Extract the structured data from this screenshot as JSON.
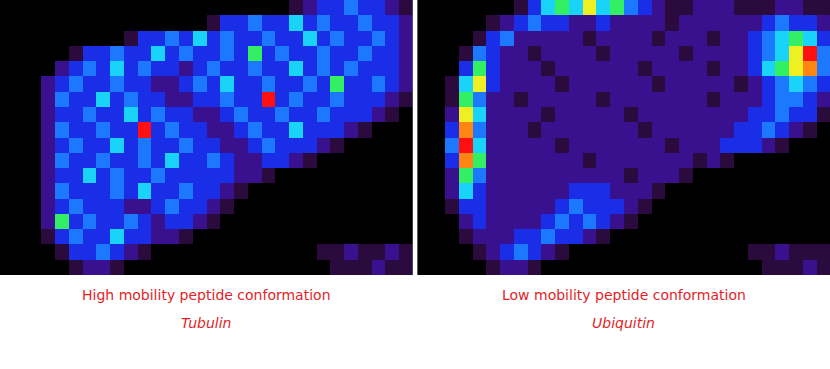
{
  "chart_data": [
    {
      "type": "heatmap",
      "title": "High mobility peptide conformation",
      "subtitle": "Tubulin",
      "zlim": [
        0,
        9
      ],
      "tick_labels": false,
      "z": [
        [
          0,
          0,
          0,
          0,
          0,
          0,
          0,
          0,
          0,
          0,
          0,
          0,
          0,
          0,
          0,
          0,
          0,
          0,
          0,
          0,
          0,
          1,
          2,
          3,
          3,
          4,
          3,
          3,
          2,
          1
        ],
        [
          0,
          0,
          0,
          0,
          0,
          0,
          0,
          0,
          0,
          0,
          0,
          0,
          0,
          0,
          0,
          1,
          3,
          3,
          4,
          3,
          3,
          5,
          3,
          4,
          3,
          3,
          4,
          3,
          3,
          2
        ],
        [
          0,
          0,
          0,
          0,
          0,
          0,
          0,
          0,
          0,
          1,
          3,
          3,
          4,
          3,
          5,
          3,
          4,
          3,
          3,
          4,
          3,
          3,
          5,
          3,
          4,
          3,
          3,
          4,
          3,
          2
        ],
        [
          0,
          0,
          0,
          0,
          0,
          1,
          3,
          3,
          4,
          3,
          3,
          5,
          3,
          4,
          3,
          3,
          4,
          3,
          6,
          3,
          4,
          3,
          3,
          4,
          3,
          3,
          4,
          3,
          3,
          2
        ],
        [
          0,
          0,
          0,
          0,
          2,
          3,
          4,
          3,
          5,
          3,
          4,
          3,
          3,
          2,
          3,
          4,
          3,
          3,
          4,
          3,
          3,
          5,
          3,
          4,
          3,
          4,
          3,
          3,
          3,
          2
        ],
        [
          0,
          0,
          0,
          2,
          3,
          4,
          3,
          3,
          4,
          3,
          3,
          2,
          2,
          3,
          4,
          3,
          5,
          3,
          3,
          4,
          3,
          3,
          4,
          3,
          6,
          3,
          3,
          4,
          3,
          2
        ],
        [
          0,
          0,
          0,
          2,
          4,
          3,
          3,
          5,
          3,
          4,
          3,
          3,
          2,
          2,
          3,
          3,
          4,
          3,
          3,
          9,
          3,
          4,
          3,
          3,
          4,
          3,
          3,
          3,
          2,
          1
        ],
        [
          0,
          0,
          0,
          2,
          3,
          3,
          4,
          3,
          3,
          5,
          3,
          4,
          3,
          3,
          2,
          2,
          3,
          4,
          3,
          3,
          4,
          3,
          3,
          4,
          3,
          3,
          3,
          2,
          1,
          0
        ],
        [
          0,
          0,
          0,
          2,
          4,
          3,
          3,
          4,
          3,
          3,
          9,
          3,
          4,
          3,
          3,
          2,
          2,
          3,
          4,
          3,
          3,
          5,
          3,
          3,
          3,
          2,
          1,
          0,
          0,
          0
        ],
        [
          0,
          0,
          0,
          2,
          3,
          4,
          3,
          3,
          5,
          3,
          4,
          3,
          3,
          4,
          3,
          3,
          2,
          2,
          3,
          4,
          3,
          3,
          3,
          2,
          1,
          0,
          0,
          0,
          0,
          0
        ],
        [
          0,
          0,
          0,
          2,
          4,
          3,
          3,
          4,
          3,
          3,
          4,
          3,
          5,
          3,
          3,
          4,
          3,
          2,
          2,
          3,
          3,
          2,
          1,
          0,
          0,
          0,
          0,
          0,
          0,
          0
        ],
        [
          0,
          0,
          0,
          2,
          3,
          3,
          5,
          3,
          4,
          3,
          3,
          4,
          3,
          3,
          3,
          3,
          3,
          2,
          2,
          1,
          0,
          0,
          0,
          0,
          0,
          0,
          0,
          0,
          0,
          0
        ],
        [
          0,
          0,
          0,
          2,
          4,
          3,
          3,
          3,
          4,
          3,
          5,
          3,
          3,
          4,
          3,
          3,
          2,
          1,
          0,
          0,
          0,
          0,
          0,
          0,
          0,
          0,
          0,
          0,
          0,
          0
        ],
        [
          0,
          0,
          0,
          2,
          3,
          4,
          3,
          3,
          3,
          2,
          2,
          3,
          4,
          3,
          3,
          2,
          1,
          0,
          0,
          0,
          0,
          0,
          0,
          0,
          0,
          0,
          0,
          0,
          0,
          0
        ],
        [
          0,
          0,
          0,
          2,
          6,
          3,
          4,
          3,
          3,
          4,
          3,
          2,
          3,
          3,
          2,
          1,
          0,
          0,
          0,
          0,
          0,
          0,
          0,
          0,
          0,
          0,
          0,
          0,
          0,
          0
        ],
        [
          0,
          0,
          0,
          1,
          3,
          4,
          3,
          3,
          5,
          3,
          3,
          2,
          2,
          1,
          0,
          0,
          0,
          0,
          0,
          0,
          0,
          0,
          0,
          0,
          0,
          0,
          0,
          0,
          0,
          0
        ],
        [
          0,
          0,
          0,
          0,
          1,
          3,
          3,
          4,
          3,
          2,
          1,
          0,
          0,
          0,
          0,
          0,
          0,
          0,
          0,
          0,
          0,
          0,
          0,
          1,
          1,
          2,
          1,
          1,
          2,
          1
        ],
        [
          0,
          0,
          0,
          0,
          0,
          1,
          2,
          2,
          1,
          0,
          0,
          0,
          0,
          0,
          0,
          0,
          0,
          0,
          0,
          0,
          0,
          0,
          0,
          0,
          1,
          1,
          1,
          2,
          1,
          1
        ]
      ]
    },
    {
      "type": "heatmap",
      "title": "Low mobility peptide conformation",
      "subtitle": "Ubiquitin",
      "zlim": [
        0,
        9
      ],
      "tick_labels": false,
      "z": [
        [
          0,
          0,
          0,
          0,
          0,
          0,
          0,
          1,
          3,
          5,
          6,
          5,
          7,
          5,
          6,
          4,
          3,
          2,
          1,
          1,
          2,
          2,
          2,
          1,
          1,
          1,
          2,
          2,
          1,
          1
        ],
        [
          0,
          0,
          0,
          0,
          0,
          1,
          2,
          3,
          4,
          3,
          3,
          2,
          2,
          3,
          2,
          2,
          2,
          2,
          1,
          2,
          2,
          2,
          2,
          2,
          2,
          3,
          4,
          3,
          3,
          2
        ],
        [
          0,
          0,
          0,
          0,
          1,
          3,
          4,
          2,
          2,
          2,
          2,
          2,
          1,
          2,
          2,
          2,
          2,
          1,
          2,
          2,
          2,
          1,
          2,
          2,
          3,
          4,
          5,
          6,
          5,
          3
        ],
        [
          0,
          0,
          0,
          1,
          4,
          3,
          2,
          2,
          1,
          2,
          2,
          2,
          2,
          1,
          2,
          2,
          2,
          2,
          2,
          1,
          2,
          2,
          2,
          2,
          3,
          4,
          5,
          7,
          9,
          4
        ],
        [
          0,
          0,
          0,
          3,
          6,
          3,
          2,
          2,
          2,
          1,
          2,
          2,
          2,
          2,
          2,
          2,
          1,
          2,
          2,
          2,
          2,
          1,
          2,
          2,
          3,
          5,
          6,
          7,
          8,
          4
        ],
        [
          0,
          0,
          1,
          5,
          7,
          3,
          2,
          2,
          2,
          2,
          1,
          2,
          2,
          2,
          2,
          2,
          2,
          1,
          2,
          2,
          2,
          2,
          2,
          1,
          2,
          3,
          4,
          5,
          4,
          3
        ],
        [
          0,
          0,
          1,
          6,
          4,
          2,
          2,
          1,
          2,
          2,
          2,
          2,
          2,
          1,
          2,
          2,
          2,
          2,
          2,
          2,
          2,
          1,
          2,
          2,
          2,
          3,
          4,
          4,
          3,
          2
        ],
        [
          0,
          0,
          2,
          7,
          5,
          2,
          2,
          2,
          2,
          1,
          2,
          2,
          2,
          2,
          2,
          1,
          2,
          2,
          2,
          2,
          2,
          2,
          2,
          2,
          3,
          3,
          4,
          3,
          3,
          1
        ],
        [
          0,
          0,
          3,
          8,
          4,
          2,
          2,
          2,
          1,
          2,
          2,
          2,
          2,
          2,
          2,
          2,
          1,
          2,
          2,
          2,
          2,
          2,
          2,
          3,
          3,
          4,
          3,
          2,
          1,
          0
        ],
        [
          0,
          0,
          4,
          9,
          5,
          2,
          2,
          2,
          2,
          2,
          1,
          2,
          2,
          2,
          2,
          2,
          2,
          2,
          1,
          2,
          2,
          2,
          3,
          3,
          3,
          2,
          1,
          0,
          0,
          0
        ],
        [
          0,
          0,
          3,
          8,
          6,
          2,
          2,
          2,
          2,
          2,
          2,
          2,
          1,
          2,
          2,
          2,
          2,
          2,
          2,
          2,
          1,
          2,
          1,
          0,
          0,
          0,
          0,
          0,
          0,
          0
        ],
        [
          0,
          0,
          2,
          6,
          4,
          2,
          2,
          2,
          2,
          2,
          2,
          2,
          2,
          2,
          2,
          1,
          2,
          2,
          2,
          1,
          0,
          0,
          0,
          0,
          0,
          0,
          0,
          0,
          0,
          0
        ],
        [
          0,
          0,
          2,
          5,
          3,
          2,
          2,
          2,
          2,
          2,
          2,
          3,
          3,
          3,
          2,
          2,
          2,
          1,
          0,
          0,
          0,
          0,
          0,
          0,
          0,
          0,
          0,
          0,
          0,
          0
        ],
        [
          0,
          0,
          1,
          3,
          3,
          2,
          2,
          2,
          2,
          2,
          3,
          4,
          3,
          3,
          3,
          2,
          1,
          0,
          0,
          0,
          0,
          0,
          0,
          0,
          0,
          0,
          0,
          0,
          0,
          0
        ],
        [
          0,
          0,
          0,
          2,
          3,
          2,
          2,
          2,
          2,
          3,
          4,
          3,
          4,
          3,
          2,
          1,
          0,
          0,
          0,
          0,
          0,
          0,
          0,
          0,
          0,
          0,
          0,
          0,
          0,
          0
        ],
        [
          0,
          0,
          0,
          1,
          2,
          2,
          2,
          3,
          3,
          4,
          3,
          3,
          2,
          1,
          0,
          0,
          0,
          0,
          0,
          0,
          0,
          0,
          0,
          0,
          0,
          0,
          0,
          0,
          0,
          0
        ],
        [
          0,
          0,
          0,
          0,
          1,
          2,
          3,
          4,
          3,
          2,
          1,
          0,
          0,
          0,
          0,
          0,
          0,
          0,
          0,
          0,
          0,
          0,
          0,
          0,
          1,
          1,
          2,
          1,
          1,
          1
        ],
        [
          0,
          0,
          0,
          0,
          0,
          1,
          2,
          2,
          1,
          0,
          0,
          0,
          0,
          0,
          0,
          0,
          0,
          0,
          0,
          0,
          0,
          0,
          0,
          0,
          0,
          1,
          1,
          1,
          2,
          1
        ]
      ]
    }
  ]
}
